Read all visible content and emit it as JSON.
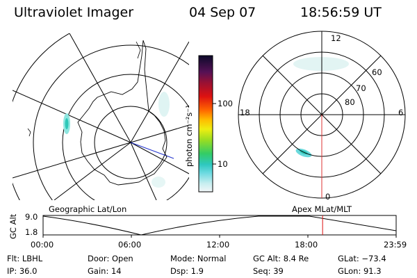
{
  "header": {
    "title": "Ultraviolet Imager",
    "date": "04 Sep 07",
    "time": "18:56:59 UT"
  },
  "colorbar": {
    "label": "photon cm⁻²s⁻¹",
    "ticks": [
      "100",
      "10"
    ]
  },
  "polar_plot": {
    "lat_labels": [
      "80",
      "70",
      "60"
    ],
    "mlt_labels": {
      "top": "12",
      "bottom": "0",
      "left": "18",
      "right": "6"
    }
  },
  "timeline": {
    "left_title": "Geographic Lat/Lon",
    "right_title": "Apex MLat/MLT",
    "y_label": "GC Alt",
    "y_top": "9.0",
    "y_bottom": "1.8",
    "x_ticks": [
      "00:00",
      "06:00",
      "12:00",
      "18:00",
      "23:59"
    ],
    "current_hour": 19.0
  },
  "info": [
    [
      {
        "k": "Flt:",
        "v": "LBHL"
      },
      {
        "k": "Door:",
        "v": "Open"
      },
      {
        "k": "Mode:",
        "v": "Normal"
      },
      {
        "k": "GC Alt:",
        "v": "8.4 Re"
      },
      {
        "k": "GLat:",
        "v": "−73.4"
      }
    ],
    [
      {
        "k": "IP:",
        "v": "36.0"
      },
      {
        "k": "Gain:",
        "v": "14"
      },
      {
        "k": "Dsp:",
        "v": "1.9"
      },
      {
        "k": "Seq:",
        "v": "39"
      },
      {
        "k": "GLon:",
        "v": "91.3"
      }
    ]
  ]
}
